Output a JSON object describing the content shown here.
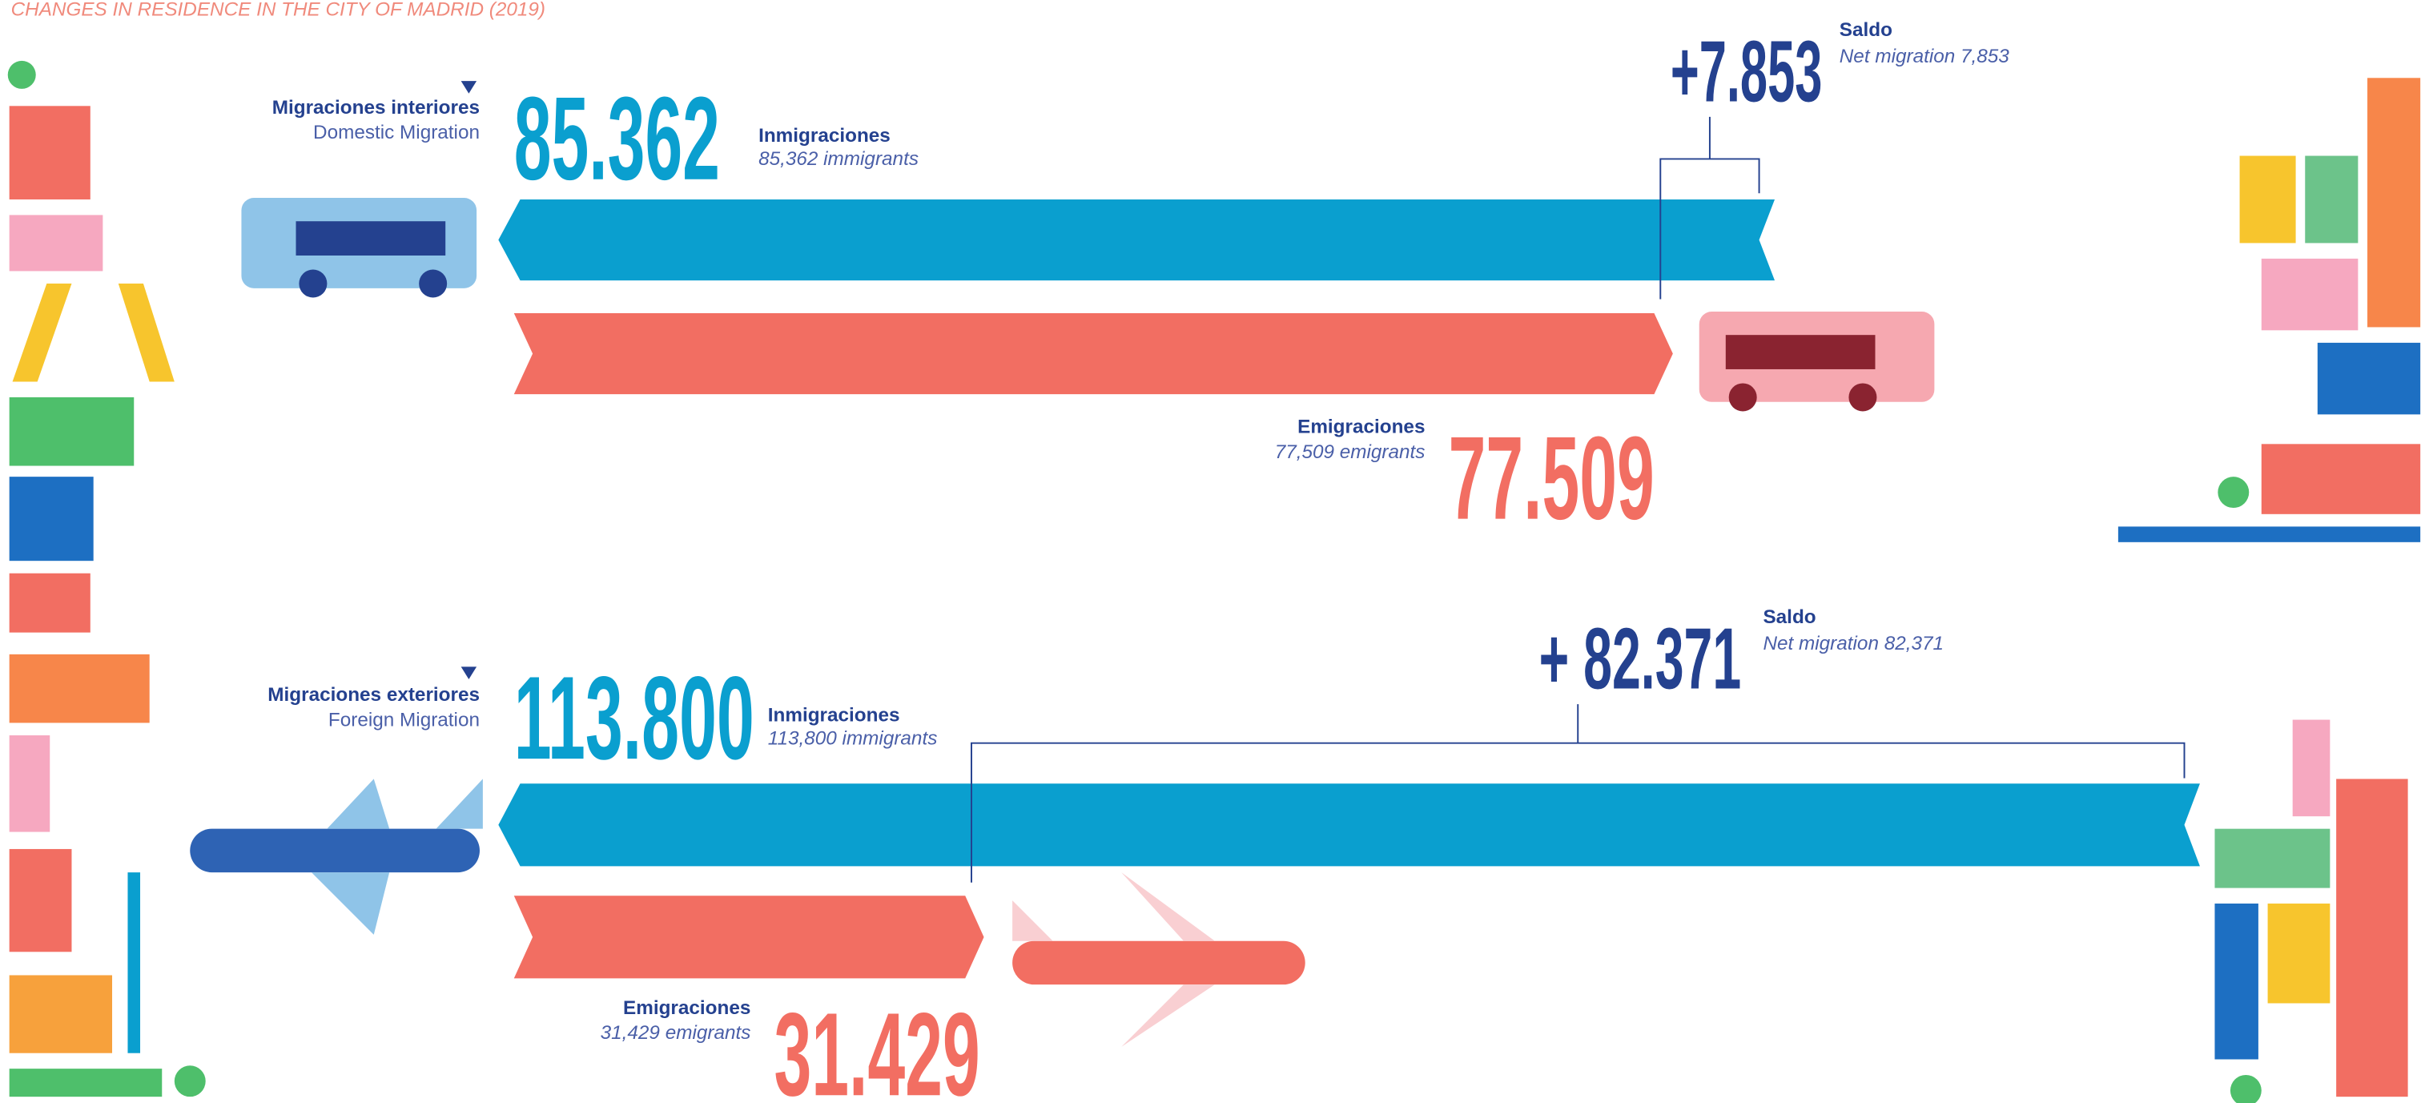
{
  "title": "CHANGES IN RESIDENCE IN THE CITY OF MADRID (2019)",
  "chart_data": [
    {
      "type": "migration-arrows",
      "title": "Migraciones interiores",
      "subtitle": "Domestic Migration",
      "categories": [
        "Inmigraciones",
        "Emigraciones"
      ],
      "category_notes": [
        "85,362 immigrants",
        "77,509   emigrants"
      ],
      "values": [
        85362,
        77509
      ],
      "value_labels": [
        "85.362",
        "77.509"
      ],
      "colors": [
        "#0a9fcf",
        "#f26e62"
      ],
      "net": {
        "label": "Saldo",
        "note": "Net migration 7,853",
        "value": 7853,
        "value_label": "+7.853",
        "color": "#24418f"
      }
    },
    {
      "type": "migration-arrows",
      "title": "Migraciones exteriores",
      "subtitle": "Foreign Migration",
      "categories": [
        "Inmigraciones",
        "Emigraciones"
      ],
      "category_notes": [
        "113,800 immigrants",
        "31,429 emigrants"
      ],
      "values": [
        113800,
        31429
      ],
      "value_labels": [
        "113.800",
        "31.429"
      ],
      "colors": [
        "#0a9fcf",
        "#f26e62"
      ],
      "net": {
        "label": "Saldo",
        "note": "Net migration 82,371",
        "value": 82371,
        "value_label": "+ 82.371",
        "color": "#24418f"
      }
    }
  ]
}
